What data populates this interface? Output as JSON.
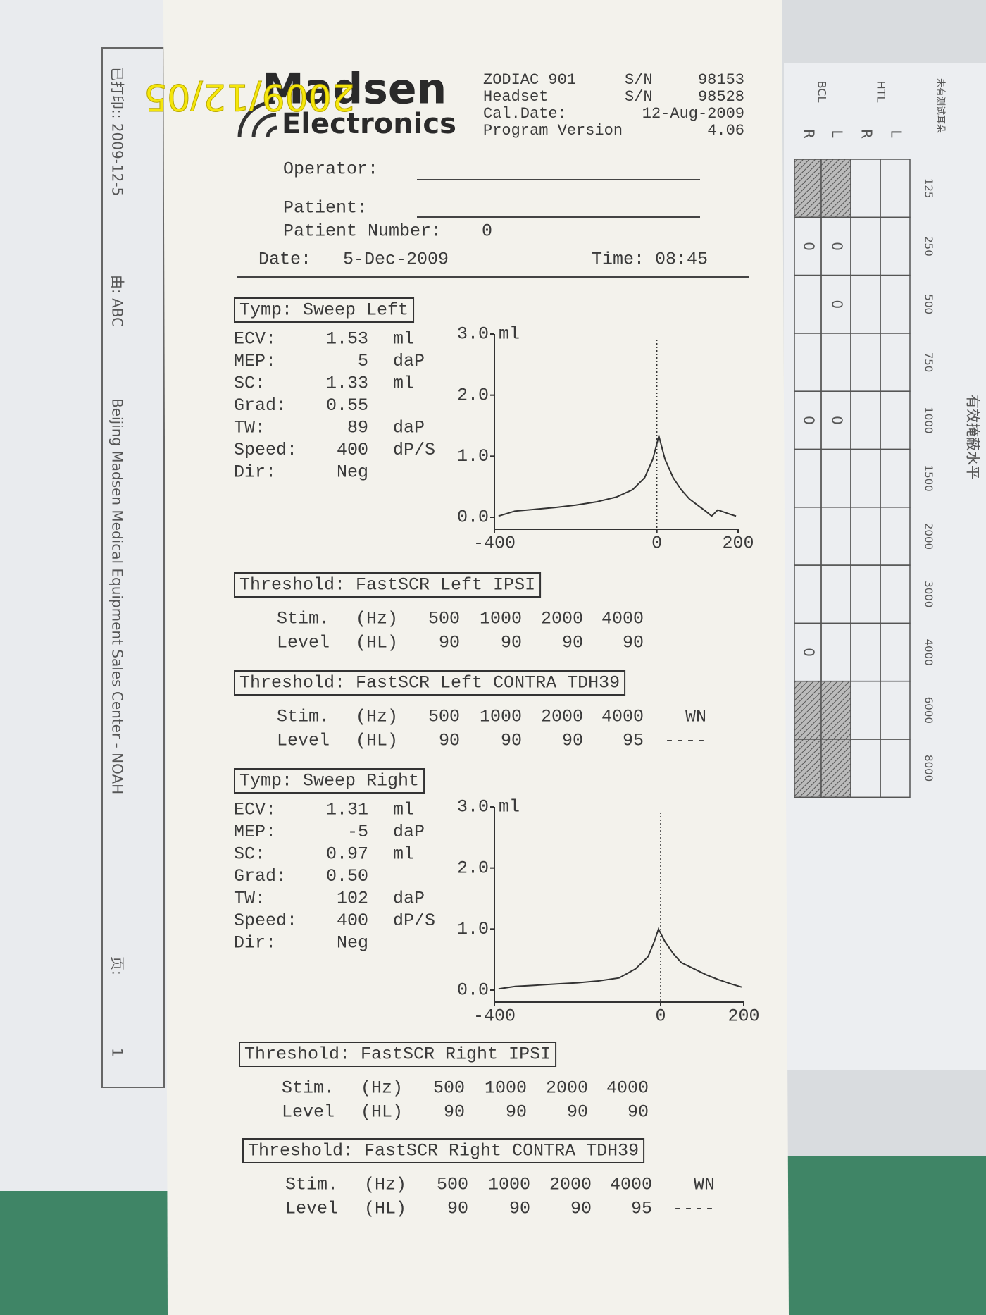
{
  "stamp": "2009/12/05",
  "left_sheet": {
    "printed": "已打印:: 2009-12-5",
    "by": "由: ABC",
    "footer": "Beijing Madsen Medical Equipment Sales Center - NOAH",
    "page_label": "页:",
    "page_number": "1"
  },
  "right_sheet": {
    "title": "有效掩蔽水平",
    "note": "未有测试耳朵",
    "row_labels": [
      "BCL",
      "HTL"
    ],
    "ear_labels": [
      "R",
      "L",
      "R",
      "L"
    ],
    "frequencies": [
      "125",
      "250",
      "500",
      "750",
      "1000",
      "1500",
      "2000",
      "3000",
      "4000",
      "6000",
      "8000"
    ],
    "cells": [
      [
        null,
        null,
        null,
        null
      ],
      [
        "0",
        "0",
        null,
        null
      ],
      [
        null,
        "0",
        null,
        null
      ],
      [
        null,
        null,
        null,
        null
      ],
      [
        "0",
        "0",
        null,
        null
      ],
      [
        null,
        null,
        null,
        null
      ],
      [
        null,
        null,
        null,
        null
      ],
      [
        null,
        null,
        null,
        null
      ],
      [
        "0",
        null,
        null,
        null
      ],
      [
        null,
        null,
        null,
        null
      ],
      [
        null,
        null,
        null,
        null
      ]
    ]
  },
  "header": {
    "logo": "Madsen",
    "logo_sub": "Electronics",
    "device": "ZODIAC 901",
    "device_sn_label": "S/N",
    "device_sn": "98153",
    "headset": "Headset",
    "headset_sn_label": "S/N",
    "headset_sn": "98528",
    "cal_label": "Cal.Date:",
    "cal_date": "12-Aug-2009",
    "program_label": "Program Version",
    "program_version": "4.06"
  },
  "patient": {
    "operator_label": "Operator:",
    "patient_label": "Patient:",
    "number_label": "Patient Number:",
    "number": "0",
    "date_label": "Date:",
    "date": "5-Dec-2009",
    "time_label": "Time:",
    "time": "08:45"
  },
  "sections": [
    {
      "kind": "tymp",
      "title": "Tymp: Sweep Left",
      "params": [
        [
          "ECV:",
          "1.53",
          "ml"
        ],
        [
          "MEP:",
          "5",
          "daP"
        ],
        [
          "SC:",
          "1.33",
          "ml"
        ],
        [
          "Grad:",
          "0.55"
        ],
        [
          "TW:",
          "89",
          "daP"
        ],
        [
          "Speed:",
          "400",
          "dP/S"
        ],
        [
          "Dir:",
          "Neg"
        ]
      ],
      "chart": {
        "type": "line",
        "y_unit": "ml",
        "x": [
          -390,
          -350,
          -300,
          -250,
          -200,
          -150,
          -100,
          -60,
          -30,
          -10,
          5,
          20,
          40,
          60,
          80,
          100,
          120,
          135,
          150,
          180,
          195
        ],
        "values": [
          0.02,
          0.1,
          0.13,
          0.16,
          0.2,
          0.25,
          0.33,
          0.45,
          0.65,
          0.95,
          1.33,
          0.95,
          0.65,
          0.45,
          0.3,
          0.2,
          0.1,
          0.02,
          0.12,
          0.05,
          0.02
        ],
        "xlim": [
          -400,
          200
        ],
        "xticks": [
          -400,
          0,
          200
        ],
        "ylim": [
          0,
          3
        ],
        "yticks": [
          {
            "value": 0,
            "label": "0.0"
          },
          {
            "value": 1,
            "label": "1.0"
          },
          {
            "value": 2,
            "label": "2.0"
          },
          {
            "value": 3,
            "label": "3.0"
          }
        ]
      }
    },
    {
      "kind": "threshold",
      "title": "Threshold: FastSCR Left IPSI",
      "rows": [
        [
          "Stim.",
          "(Hz)",
          "500",
          "1000",
          "2000",
          "4000"
        ],
        [
          "Level",
          "(HL)",
          "90",
          "90",
          "90",
          "90"
        ]
      ]
    },
    {
      "kind": "threshold",
      "title": "Threshold: FastSCR Left CONTRA TDH39",
      "rows": [
        [
          "Stim.",
          "(Hz)",
          "500",
          "1000",
          "2000",
          "4000",
          "WN"
        ],
        [
          "Level",
          "(HL)",
          "90",
          "90",
          "90",
          "95",
          "----"
        ]
      ]
    },
    {
      "kind": "tymp",
      "title": "Tymp: Sweep Right",
      "params": [
        [
          "ECV:",
          "1.31",
          "ml"
        ],
        [
          "MEP:",
          "-5",
          "daP"
        ],
        [
          "SC:",
          "0.97",
          "ml"
        ],
        [
          "Grad:",
          "0.50"
        ],
        [
          "TW:",
          "102",
          "daP"
        ],
        [
          "Speed:",
          "400",
          "dP/S"
        ],
        [
          "Dir:",
          "Neg"
        ]
      ],
      "chart": {
        "type": "line",
        "y_unit": "ml",
        "x": [
          -390,
          -350,
          -300,
          -250,
          -200,
          -150,
          -100,
          -60,
          -30,
          -15,
          -5,
          10,
          30,
          50,
          80,
          110,
          140,
          170,
          195
        ],
        "values": [
          0.02,
          0.06,
          0.08,
          0.1,
          0.12,
          0.15,
          0.2,
          0.35,
          0.55,
          0.8,
          1.0,
          0.8,
          0.6,
          0.45,
          0.35,
          0.25,
          0.17,
          0.1,
          0.05
        ],
        "xlim": [
          -400,
          200
        ],
        "xticks": [
          -400,
          0,
          200
        ],
        "ylim": [
          0,
          3
        ],
        "yticks": [
          {
            "value": 0,
            "label": "0.0"
          },
          {
            "value": 1,
            "label": "1.0"
          },
          {
            "value": 2,
            "label": "2.0"
          },
          {
            "value": 3,
            "label": "3.0"
          }
        ]
      }
    },
    {
      "kind": "threshold",
      "title": "Threshold: FastSCR Right IPSI",
      "rows": [
        [
          "Stim.",
          "(Hz)",
          "500",
          "1000",
          "2000",
          "4000"
        ],
        [
          "Level",
          "(HL)",
          "90",
          "90",
          "90",
          "90"
        ]
      ]
    },
    {
      "kind": "threshold",
      "title": "Threshold: FastSCR Right CONTRA TDH39",
      "rows": [
        [
          "Stim.",
          "(Hz)",
          "500",
          "1000",
          "2000",
          "4000",
          "WN"
        ],
        [
          "Level",
          "(HL)",
          "90",
          "90",
          "90",
          "95",
          "----"
        ]
      ]
    }
  ]
}
